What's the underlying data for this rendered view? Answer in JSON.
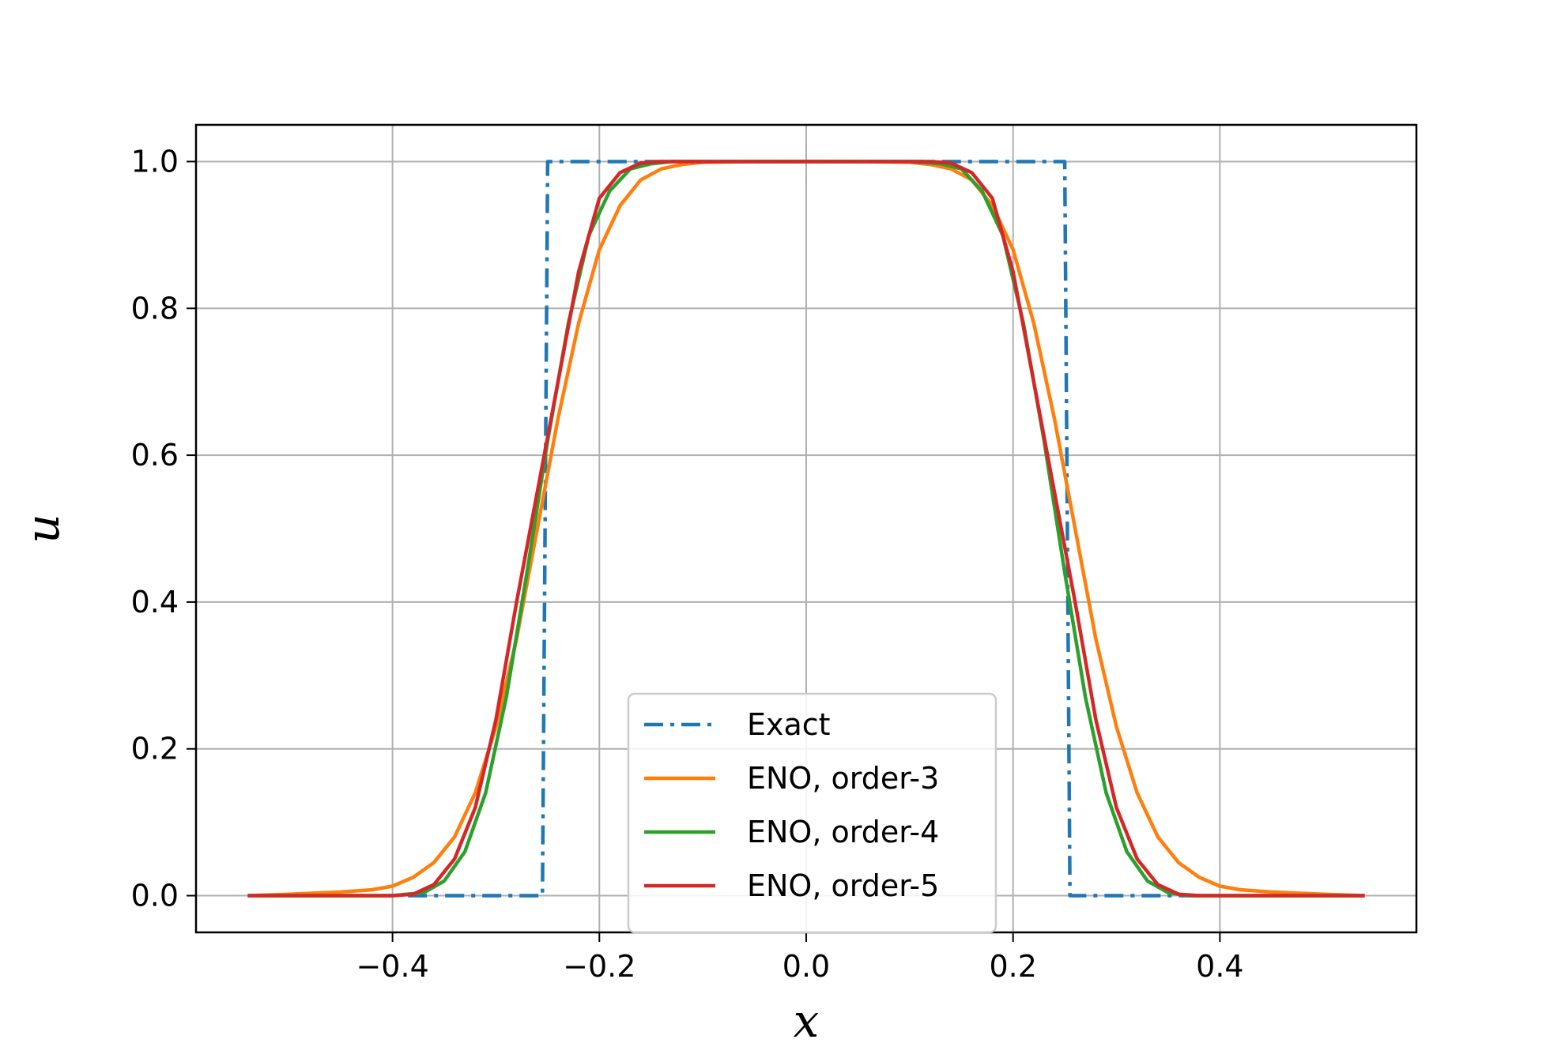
{
  "chart_data": {
    "type": "line",
    "title": "",
    "xlabel": "x",
    "ylabel": "u",
    "xlim": [
      -0.59,
      0.59
    ],
    "ylim": [
      -0.05,
      1.05
    ],
    "xticks": [
      -0.4,
      -0.2,
      0.0,
      0.2,
      0.4
    ],
    "xtick_labels": [
      "−0.4",
      "−0.2",
      "0.0",
      "0.2",
      "0.4"
    ],
    "yticks": [
      0.0,
      0.2,
      0.4,
      0.6,
      0.8,
      1.0
    ],
    "ytick_labels": [
      "0.0",
      "0.2",
      "0.4",
      "0.6",
      "0.8",
      "1.0"
    ],
    "grid": true,
    "legend_position": "lower-center",
    "series": [
      {
        "name": "Exact",
        "color": "#1f77b4",
        "style": "dashdot",
        "x": [
          -0.385,
          -0.255,
          -0.25,
          0.25,
          0.255,
          0.385
        ],
        "y": [
          0.0,
          0.0,
          1.0,
          1.0,
          0.0,
          0.0
        ]
      },
      {
        "name": "ENO, order-3",
        "color": "#ff7f0e",
        "style": "solid",
        "x": [
          -0.54,
          -0.5,
          -0.45,
          -0.42,
          -0.4,
          -0.38,
          -0.36,
          -0.34,
          -0.32,
          -0.3,
          -0.28,
          -0.26,
          -0.24,
          -0.22,
          -0.2,
          -0.18,
          -0.16,
          -0.14,
          -0.12,
          -0.1,
          -0.05,
          0.0,
          0.05,
          0.1,
          0.12,
          0.14,
          0.16,
          0.18,
          0.2,
          0.22,
          0.24,
          0.26,
          0.28,
          0.3,
          0.32,
          0.34,
          0.36,
          0.38,
          0.4,
          0.42,
          0.45,
          0.5,
          0.54
        ],
        "y": [
          0.0,
          0.002,
          0.005,
          0.008,
          0.013,
          0.025,
          0.045,
          0.08,
          0.14,
          0.23,
          0.35,
          0.5,
          0.65,
          0.78,
          0.88,
          0.94,
          0.975,
          0.99,
          0.996,
          0.999,
          1.0,
          1.0,
          1.0,
          0.999,
          0.996,
          0.99,
          0.975,
          0.94,
          0.88,
          0.78,
          0.65,
          0.5,
          0.35,
          0.23,
          0.14,
          0.08,
          0.045,
          0.025,
          0.013,
          0.008,
          0.005,
          0.002,
          0.0
        ]
      },
      {
        "name": "ENO, order-4",
        "color": "#2ca02c",
        "style": "solid",
        "x": [
          -0.54,
          -0.4,
          -0.37,
          -0.35,
          -0.33,
          -0.31,
          -0.29,
          -0.27,
          -0.25,
          -0.23,
          -0.21,
          -0.19,
          -0.17,
          -0.15,
          -0.13,
          -0.1,
          -0.05,
          0.0,
          0.05,
          0.1,
          0.13,
          0.15,
          0.17,
          0.19,
          0.21,
          0.23,
          0.25,
          0.27,
          0.29,
          0.31,
          0.33,
          0.35,
          0.37,
          0.4,
          0.54
        ],
        "y": [
          0.0,
          0.0,
          0.004,
          0.02,
          0.06,
          0.14,
          0.27,
          0.44,
          0.62,
          0.78,
          0.9,
          0.96,
          0.99,
          0.997,
          1.0,
          1.0,
          1.0,
          1.0,
          1.0,
          1.0,
          0.997,
          0.99,
          0.96,
          0.9,
          0.78,
          0.62,
          0.44,
          0.27,
          0.14,
          0.06,
          0.02,
          0.004,
          0.0,
          0.0,
          0.0
        ]
      },
      {
        "name": "ENO, order-5",
        "color": "#d62728",
        "style": "solid",
        "x": [
          -0.54,
          -0.4,
          -0.38,
          -0.36,
          -0.34,
          -0.32,
          -0.3,
          -0.28,
          -0.26,
          -0.24,
          -0.22,
          -0.2,
          -0.18,
          -0.16,
          -0.14,
          -0.12,
          -0.05,
          0.0,
          0.05,
          0.12,
          0.14,
          0.16,
          0.18,
          0.2,
          0.22,
          0.24,
          0.26,
          0.28,
          0.3,
          0.32,
          0.34,
          0.36,
          0.38,
          0.4,
          0.54
        ],
        "y": [
          0.0,
          0.0,
          0.002,
          0.015,
          0.05,
          0.12,
          0.24,
          0.4,
          0.55,
          0.7,
          0.85,
          0.95,
          0.985,
          0.998,
          1.0,
          1.0,
          1.0,
          1.0,
          1.0,
          1.0,
          0.998,
          0.985,
          0.95,
          0.85,
          0.7,
          0.55,
          0.4,
          0.24,
          0.12,
          0.05,
          0.015,
          0.002,
          0.0,
          0.0,
          0.0
        ]
      }
    ]
  }
}
